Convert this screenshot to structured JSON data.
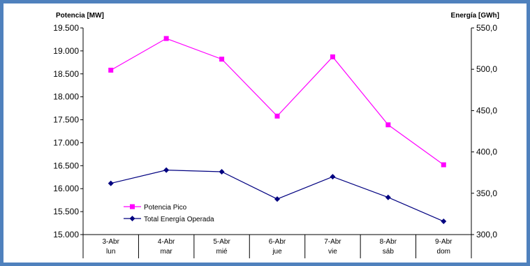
{
  "chart_data": {
    "type": "line",
    "title": "",
    "ylabel": "Potencia [MW]",
    "y2label": "Energía [GWh]",
    "categories": [
      [
        "3-Abr",
        "lun"
      ],
      [
        "4-Abr",
        "mar"
      ],
      [
        "5-Abr",
        "mié"
      ],
      [
        "6-Abr",
        "jue"
      ],
      [
        "7-Abr",
        "vie"
      ],
      [
        "8-Abr",
        "sáb"
      ],
      [
        "9-Abr",
        "dom"
      ]
    ],
    "ylim": [
      15000,
      19500
    ],
    "y_ticks": [
      "15.000",
      "15.500",
      "16.000",
      "16.500",
      "17.000",
      "17.500",
      "18.000",
      "18.500",
      "19.000",
      "19.500"
    ],
    "y2lim": [
      300,
      550
    ],
    "y2_ticks": [
      "300,0",
      "350,0",
      "400,0",
      "450,0",
      "500,0",
      "550,0"
    ],
    "grid": false,
    "legend_position": "bottom-left",
    "series": [
      {
        "name": "Potencia Pico",
        "axis": "left",
        "color": "#ff00ff",
        "marker": "square",
        "values": [
          18580,
          19270,
          18820,
          17580,
          18870,
          17390,
          16520
        ]
      },
      {
        "name": "Total Energía Operada",
        "axis": "right",
        "color": "#000080",
        "marker": "diamond",
        "values": [
          362,
          378,
          376,
          343,
          370,
          345,
          316
        ]
      }
    ]
  }
}
